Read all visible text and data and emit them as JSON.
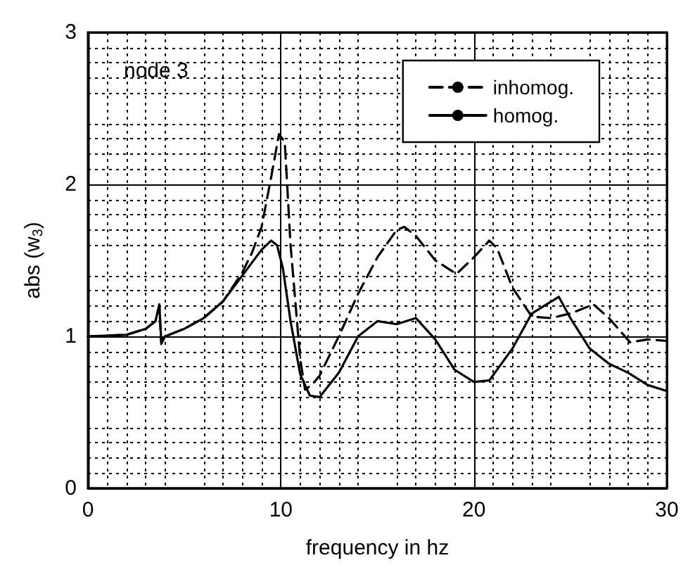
{
  "chart_data": {
    "type": "line",
    "xlabel": "frequency in hz",
    "ylabel": "abs (w$_{3}$)",
    "annotations": [
      "node 3"
    ],
    "xlim": [
      0,
      30
    ],
    "xticks": [
      0,
      10,
      20,
      30
    ],
    "ylim": [
      0,
      3
    ],
    "yticks": [
      0,
      1,
      2,
      3
    ],
    "grid": true,
    "legend": "top right",
    "marker": "none",
    "series": [
      {
        "name": "inhomog.",
        "color": "#000000",
        "line_style": "dashed",
        "x": [
          0,
          2,
          3,
          3.5,
          3.7,
          3.8,
          4,
          5,
          6,
          7,
          8,
          8.5,
          9,
          9.5,
          9.9,
          10.2,
          10.5,
          11,
          11.25,
          11.6,
          12,
          13,
          14,
          15,
          16,
          16.4,
          17,
          18,
          19.1,
          20,
          20.8,
          21.2,
          22,
          23,
          24,
          25,
          26.2,
          27,
          28.1,
          29,
          30
        ],
        "values": [
          1.0,
          1.01,
          1.05,
          1.1,
          1.2,
          0.95,
          1.0,
          1.05,
          1.12,
          1.23,
          1.42,
          1.55,
          1.72,
          2.05,
          2.33,
          2.28,
          1.6,
          0.85,
          0.65,
          0.68,
          0.74,
          1.0,
          1.28,
          1.52,
          1.7,
          1.72,
          1.66,
          1.5,
          1.41,
          1.52,
          1.63,
          1.58,
          1.32,
          1.13,
          1.12,
          1.15,
          1.21,
          1.12,
          0.96,
          0.98,
          0.97
        ]
      },
      {
        "name": "homog.",
        "color": "#000000",
        "line_style": "solid",
        "x": [
          0,
          2,
          3,
          3.5,
          3.7,
          3.8,
          4,
          5,
          6,
          7,
          8,
          9,
          9.5,
          9.8,
          10.1,
          10.5,
          11,
          11.5,
          12,
          13,
          14,
          15,
          16,
          17,
          18,
          19,
          20,
          20.8,
          22,
          23,
          24.4,
          25,
          26,
          27,
          28,
          29,
          30
        ],
        "values": [
          1.0,
          1.01,
          1.05,
          1.1,
          1.21,
          0.97,
          1.0,
          1.05,
          1.12,
          1.23,
          1.4,
          1.57,
          1.63,
          1.6,
          1.45,
          1.1,
          0.75,
          0.61,
          0.6,
          0.76,
          1.0,
          1.1,
          1.08,
          1.12,
          0.98,
          0.78,
          0.7,
          0.71,
          0.92,
          1.15,
          1.26,
          1.12,
          0.92,
          0.82,
          0.76,
          0.68,
          0.64
        ]
      }
    ]
  }
}
